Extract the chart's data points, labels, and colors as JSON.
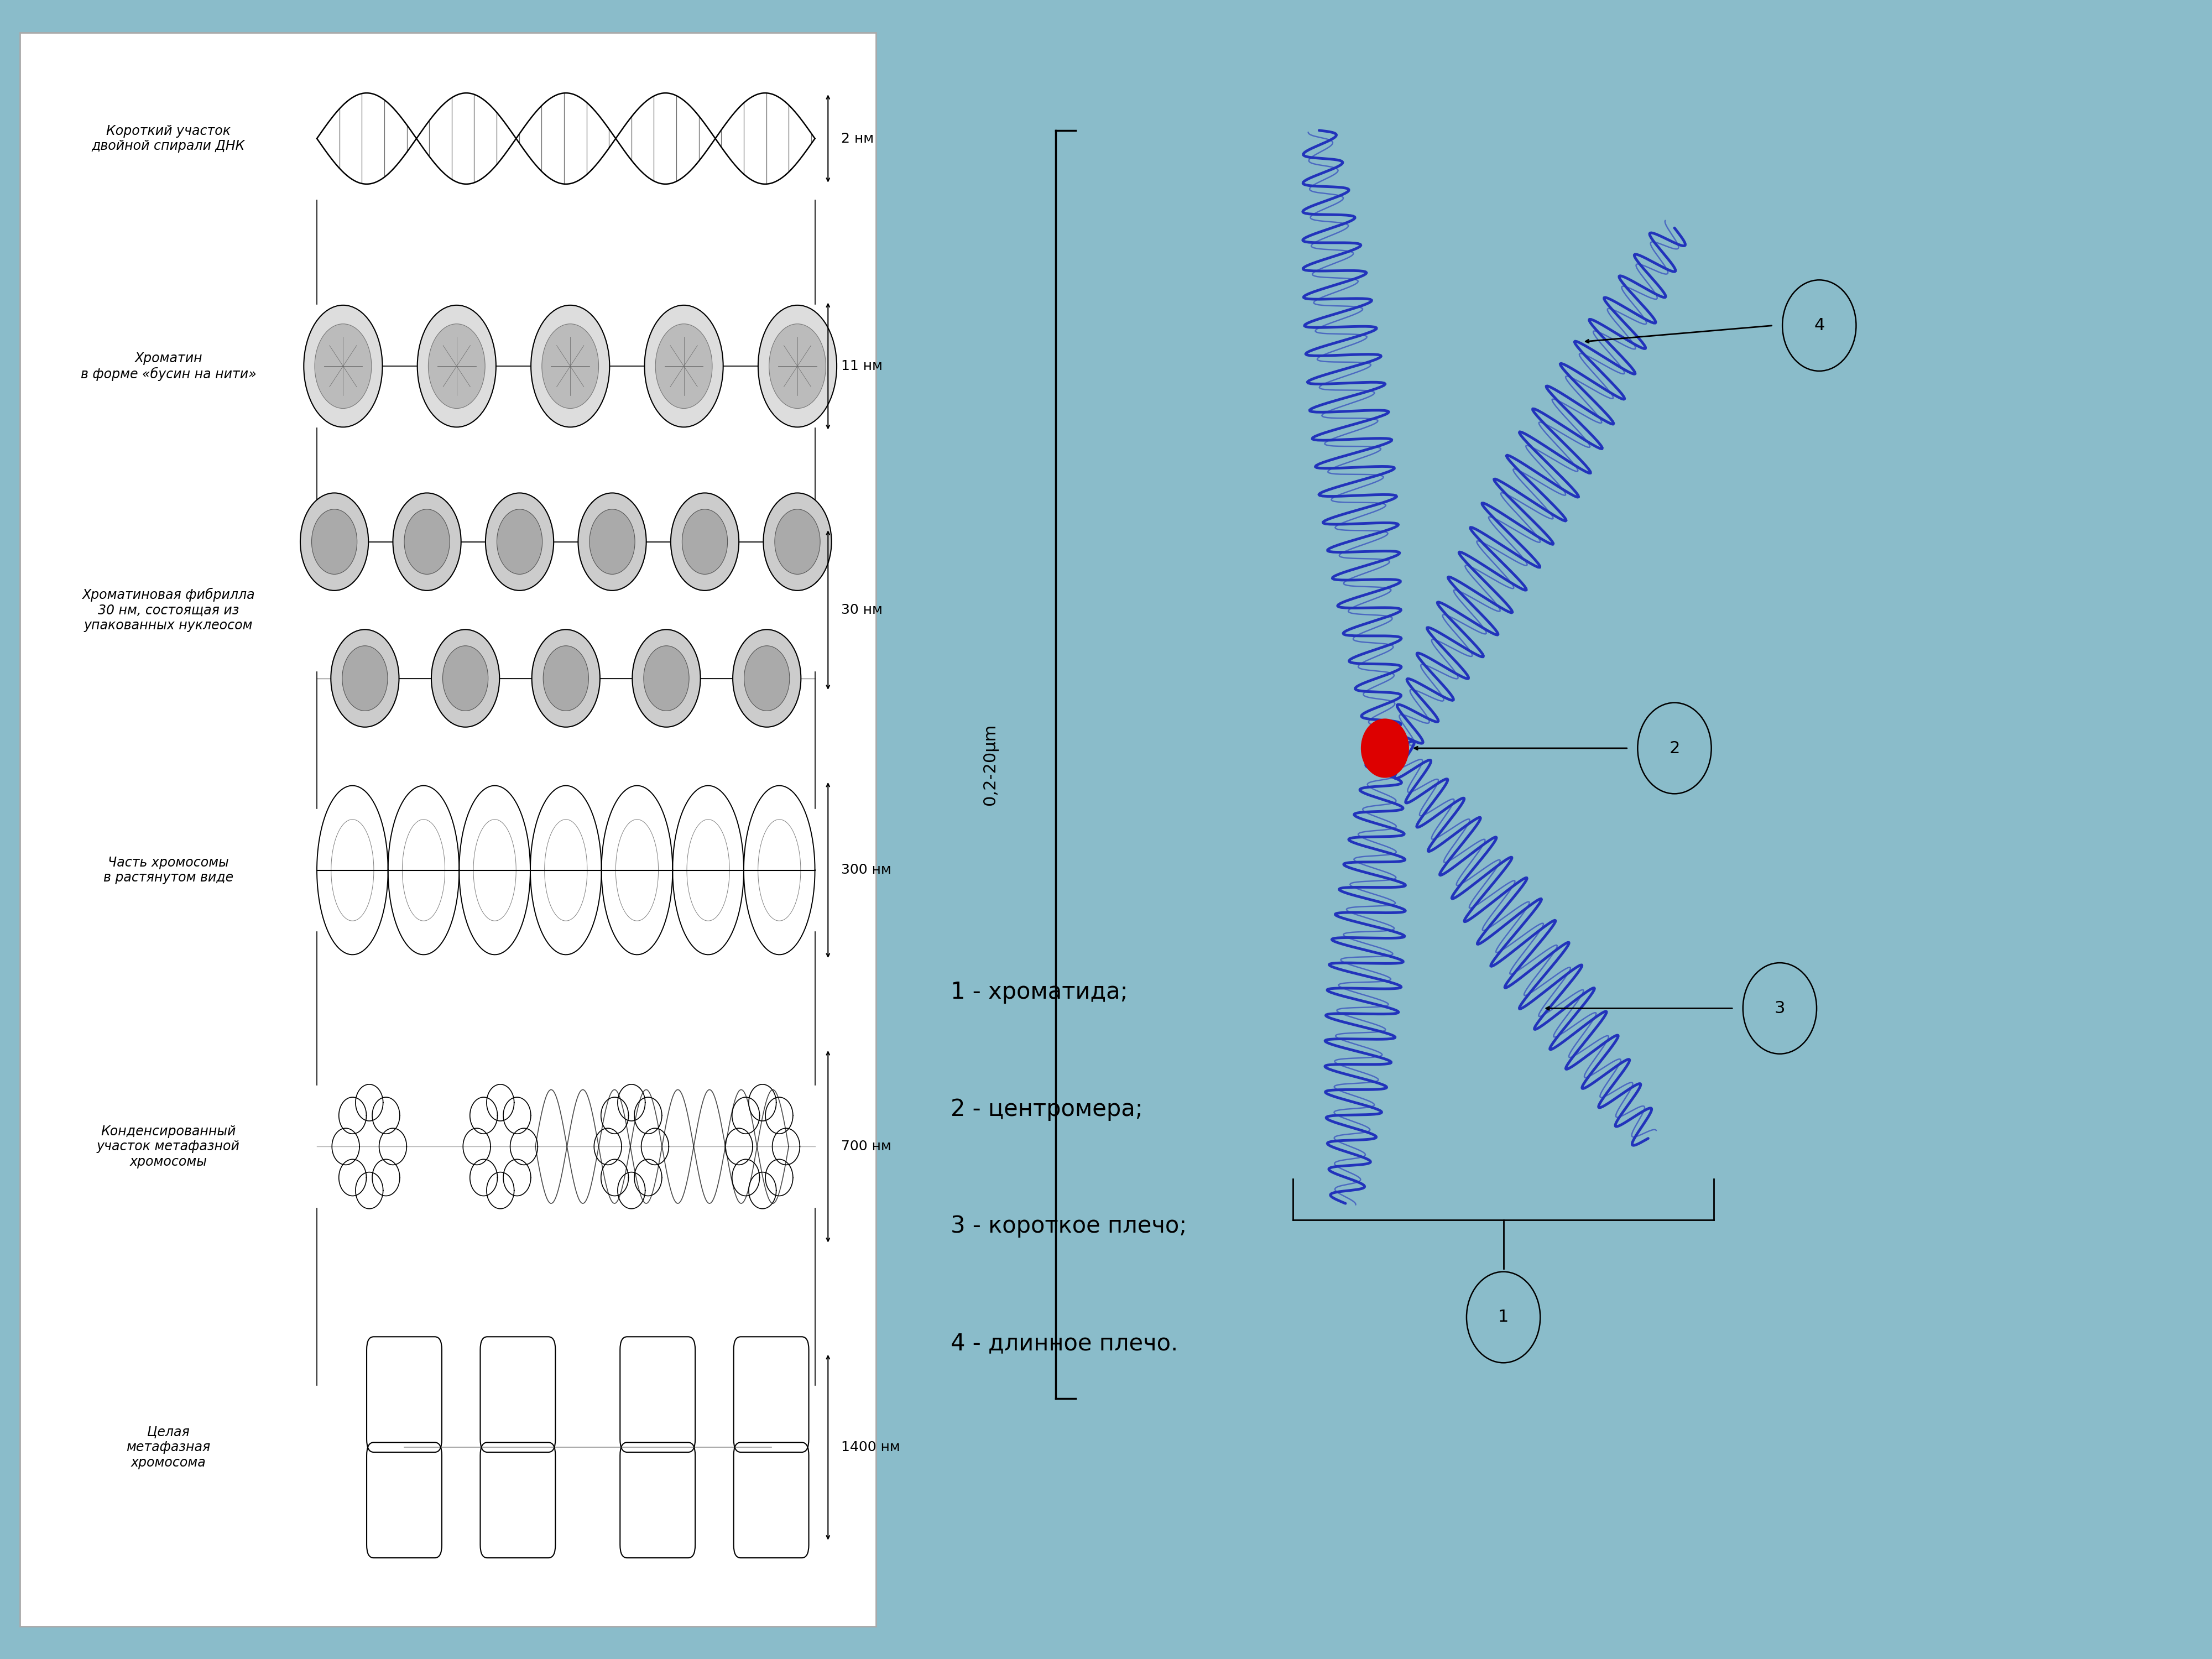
{
  "bg_color_overall": "#8abcca",
  "bg_color_right": "#8abcca",
  "left_panel_bg": "#ffffff",
  "chromosome_color": "#2233bb",
  "centromere_color": "#dd0000",
  "size_labels": [
    "2 нм",
    "11 нм",
    "30 нм",
    "300 нм",
    "700 нм",
    "1400 нм"
  ],
  "labels_left": [
    "Короткий участок\nдвойной спирали ДНК",
    "Хроматин\nв форме «бусин на нити»",
    "Хроматиновая фибрилла\n30 нм, состоящая из\nупакованных нуклеосом",
    "Часть хромосомы\nв растянутом виде",
    "Конденсированный\nучасток метафазной\nхромосомы",
    "Целая\nметафазная\nхромосома"
  ],
  "legend": [
    "1 - хроматида;",
    "2 - центромера;",
    "3 - короткое плечо;",
    "4 - длинное плечо."
  ],
  "axis_label": "0,2-20μm"
}
